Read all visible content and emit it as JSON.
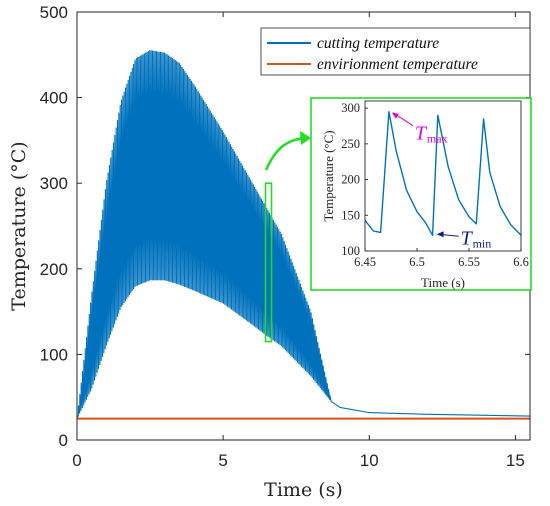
{
  "chart_data": [
    {
      "type": "line",
      "xlabel": "Time (s)",
      "ylabel": "Temperature (°C)",
      "xlim": [
        0,
        15.5
      ],
      "ylim": [
        0,
        500
      ],
      "xticks": [
        0,
        5,
        10,
        15
      ],
      "yticks": [
        0,
        100,
        200,
        300,
        400,
        500
      ],
      "grid": false,
      "legend_position": "top-right",
      "series": [
        {
          "name": "cutting temperature",
          "color": "#0072BD",
          "style": "oscillating band (rapid cycles)",
          "upper_envelope": {
            "x": [
              0,
              0.5,
              1,
              1.5,
              2,
              2.5,
              3,
              3.5,
              4,
              5,
              6,
              6.5,
              7,
              8,
              8.7,
              9,
              10,
              12,
              15.5
            ],
            "y": [
              25,
              170,
              300,
              395,
              445,
              455,
              452,
              440,
              415,
              360,
              300,
              270,
              240,
              150,
              45,
              38,
              32,
              30,
              28
            ]
          },
          "lower_envelope": {
            "x": [
              0,
              0.5,
              1,
              1.5,
              2,
              2.5,
              3,
              3.5,
              4,
              5,
              6,
              6.5,
              7,
              8,
              8.7,
              9,
              10,
              12,
              15.5
            ],
            "y": [
              25,
              60,
              110,
              155,
              180,
              187,
              187,
              182,
              175,
              160,
              135,
              122,
              110,
              75,
              45,
              38,
              32,
              30,
              28
            ]
          }
        },
        {
          "name": "envirionment temperature",
          "color": "#D95319",
          "x": [
            0,
            15.5
          ],
          "y": [
            25,
            25
          ]
        }
      ],
      "highlight_box": {
        "x": [
          6.45,
          6.6
        ],
        "y": [
          115,
          300
        ]
      }
    },
    {
      "type": "line",
      "xlabel": "Time (s)",
      "ylabel": "Temperature (°C)",
      "xlim": [
        6.45,
        6.6
      ],
      "ylim": [
        100,
        310
      ],
      "xticks": [
        6.45,
        6.5,
        6.55,
        6.6
      ],
      "yticks": [
        100,
        150,
        200,
        250,
        300
      ],
      "series": [
        {
          "name": "cutting temperature",
          "color": "#0072BD",
          "x": [
            6.45,
            6.458,
            6.465,
            6.473,
            6.48,
            6.49,
            6.5,
            6.508,
            6.515,
            6.52,
            6.53,
            6.54,
            6.55,
            6.557,
            6.564,
            6.57,
            6.58,
            6.59,
            6.6
          ],
          "y": [
            143,
            128,
            126,
            295,
            240,
            185,
            155,
            140,
            122,
            290,
            218,
            172,
            148,
            138,
            285,
            210,
            162,
            137,
            122
          ]
        }
      ],
      "annotations": [
        {
          "symbol": "T",
          "subscript": "max",
          "color": "#E000E0",
          "x": 6.473,
          "y": 295
        },
        {
          "symbol": "T",
          "subscript": "min",
          "color": "#0F1E8C",
          "x": 6.515,
          "y": 122
        }
      ]
    }
  ]
}
